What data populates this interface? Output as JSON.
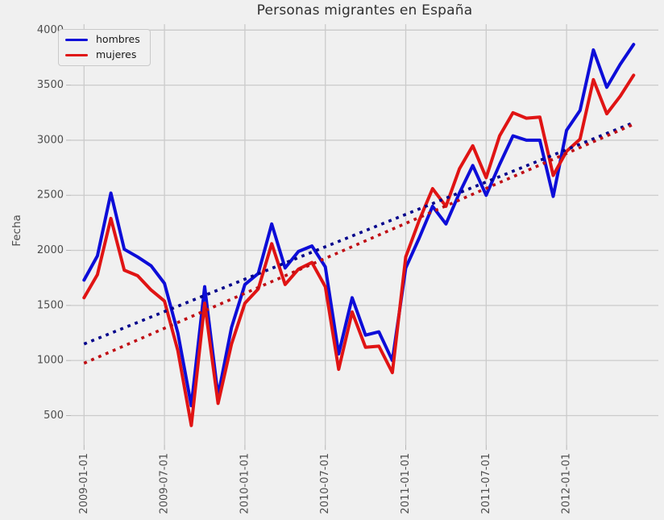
{
  "title": "Personas migrantes en España",
  "ylabel": "Fecha",
  "legend": {
    "items": [
      {
        "label": "hombres",
        "color": "#0d0dd8"
      },
      {
        "label": "mujeres",
        "color": "#e01414"
      }
    ],
    "position": "upper left"
  },
  "colors": {
    "background": "#f0f0f0",
    "grid": "#cbcbcb",
    "tick_text": "#4d4d4d",
    "hombres": "#0d0dd8",
    "mujeres": "#e01414",
    "hombres_trend": "#00008b",
    "mujeres_trend": "#c00e14"
  },
  "chart_data": {
    "type": "line",
    "title": "Personas migrantes en España",
    "xlabel": "",
    "ylabel": "Fecha",
    "grid": true,
    "legend_position": "upper left",
    "ylim": [
      230,
      4050
    ],
    "y_ticks": [
      500,
      1000,
      1500,
      2000,
      2500,
      3000,
      3500,
      4000
    ],
    "x_ticks": [
      "2009-01-01",
      "2009-07-01",
      "2010-01-01",
      "2010-07-01",
      "2011-01-01",
      "2011-07-01",
      "2012-01-01"
    ],
    "x_dates": [
      "2009-01-01",
      "2009-02-01",
      "2009-03-01",
      "2009-04-01",
      "2009-05-01",
      "2009-06-01",
      "2009-07-01",
      "2009-08-01",
      "2009-09-01",
      "2009-10-01",
      "2009-11-01",
      "2009-12-01",
      "2010-01-01",
      "2010-02-01",
      "2010-03-01",
      "2010-04-01",
      "2010-05-01",
      "2010-06-01",
      "2010-07-01",
      "2010-08-01",
      "2010-09-01",
      "2010-10-01",
      "2010-11-01",
      "2010-12-01",
      "2011-01-01",
      "2011-02-01",
      "2011-03-01",
      "2011-04-01",
      "2011-05-01",
      "2011-06-01",
      "2011-07-01",
      "2011-08-01",
      "2011-09-01",
      "2011-10-01",
      "2011-11-01",
      "2011-12-01",
      "2012-01-01",
      "2012-02-01",
      "2012-03-01",
      "2012-04-01",
      "2012-05-01",
      "2012-06-01"
    ],
    "series": [
      {
        "name": "hombres",
        "style": "solid",
        "color": "#0d0dd8",
        "values": [
          1730,
          1950,
          2520,
          2010,
          1940,
          1860,
          1700,
          1250,
          590,
          1670,
          680,
          1300,
          1690,
          1790,
          2240,
          1840,
          1990,
          2040,
          1850,
          1060,
          1570,
          1230,
          1260,
          1000,
          1840,
          2110,
          2400,
          2240,
          2520,
          2770,
          2500,
          2780,
          3040,
          3000,
          3000,
          2490,
          3090,
          3270,
          3820,
          3480,
          3690,
          3870
        ]
      },
      {
        "name": "mujeres",
        "style": "solid",
        "color": "#e01414",
        "values": [
          1570,
          1780,
          2290,
          1820,
          1770,
          1640,
          1540,
          1090,
          410,
          1520,
          610,
          1150,
          1520,
          1650,
          2060,
          1690,
          1830,
          1890,
          1670,
          920,
          1440,
          1120,
          1130,
          890,
          1940,
          2270,
          2560,
          2400,
          2740,
          2950,
          2660,
          3040,
          3250,
          3200,
          3210,
          2680,
          2900,
          3010,
          3550,
          3240,
          3400,
          3590
        ]
      },
      {
        "name": "hombres tendencia",
        "style": "dotted",
        "color": "#00008b",
        "trend": {
          "start_value": 1150,
          "end_value": 3160
        }
      },
      {
        "name": "mujeres tendencia",
        "style": "dotted",
        "color": "#c00e14",
        "trend": {
          "start_value": 975,
          "end_value": 3145
        }
      }
    ]
  }
}
